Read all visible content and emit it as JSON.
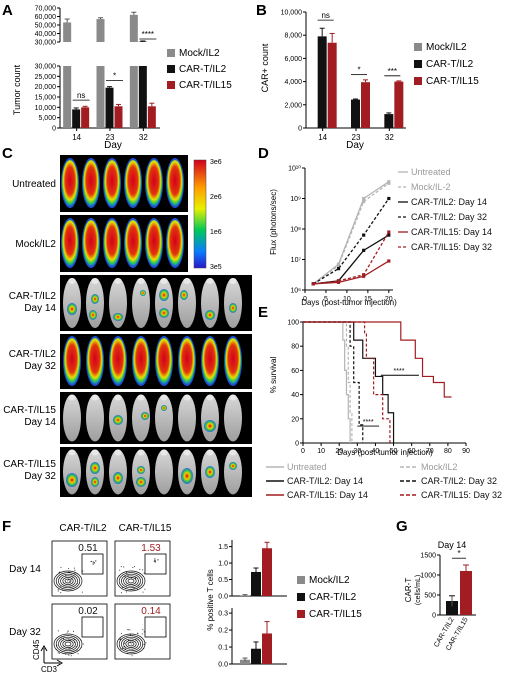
{
  "panels": {
    "A": {
      "letter": "A"
    },
    "B": {
      "letter": "B"
    },
    "C": {
      "letter": "C"
    },
    "D": {
      "letter": "D"
    },
    "E": {
      "letter": "E"
    },
    "F": {
      "letter": "F"
    },
    "G": {
      "letter": "G"
    }
  },
  "colors": {
    "mock": "#8a8a8a",
    "il2": "#111111",
    "il15": "#a11d22",
    "untreated": "#b5b5b5"
  },
  "chart_data": [
    {
      "id": "A",
      "type": "bar",
      "ylabel": "Tumor count",
      "xlabel": "Day",
      "categories": [
        "14",
        "23",
        "32"
      ],
      "yticks": [
        "0",
        "5,000",
        "10,000",
        "15,000",
        "20,000",
        "25,000",
        "30,000",
        "40,000",
        "50,000",
        "60,000",
        "70,000"
      ],
      "series": [
        {
          "name": "Mock/IL2",
          "values": [
            53000,
            57000,
            62000
          ],
          "err": [
            4000,
            1500,
            3000
          ]
        },
        {
          "name": "CAR-T/IL2",
          "values": [
            9000,
            19500,
            30500
          ],
          "err": [
            700,
            500,
            700
          ]
        },
        {
          "name": "CAR-T/IL15",
          "values": [
            10000,
            10500,
            10500
          ],
          "err": [
            500,
            900,
            1500
          ]
        }
      ],
      "sig": [
        "ns",
        "*",
        "****"
      ]
    },
    {
      "id": "B",
      "type": "bar",
      "ylabel": "CAR+ count",
      "xlabel": "Day",
      "categories": [
        "14",
        "23",
        "32"
      ],
      "yticks": [
        "0",
        "2,000",
        "4,000",
        "6,000",
        "8,000",
        "10,000"
      ],
      "ylim": [
        0,
        10000
      ],
      "series": [
        {
          "name": "Mock/IL2",
          "values": [
            0,
            0,
            0
          ],
          "err": [
            0,
            0,
            0
          ]
        },
        {
          "name": "CAR-T/IL2",
          "values": [
            7900,
            2450,
            1200
          ],
          "err": [
            700,
            50,
            100
          ]
        },
        {
          "name": "CAR-T/IL15",
          "values": [
            7350,
            3950,
            4000
          ],
          "err": [
            800,
            200,
            60
          ]
        }
      ],
      "sig": [
        "ns",
        "*",
        "***"
      ]
    },
    {
      "id": "D",
      "type": "line",
      "ylabel": "Flux (photons/sec)",
      "xlabel": "Days (post-tumor injection)",
      "xticks": [
        "0",
        "5",
        "10",
        "15",
        "20"
      ],
      "yticks": [
        "10⁶",
        "10⁷",
        "10⁸",
        "10⁹",
        "10¹⁰"
      ],
      "x": [
        2,
        8,
        14,
        20
      ],
      "series": [
        {
          "name": "Untreated",
          "values": [
            6.2,
            6.85,
            9.0,
            9.55
          ],
          "color": "untreated",
          "dash": false
        },
        {
          "name": "Mock/IL-2",
          "values": [
            6.2,
            6.8,
            8.9,
            9.5
          ],
          "color": "untreated",
          "dash": true
        },
        {
          "name": "CAR-T/IL2: Day 14",
          "values": [
            6.2,
            6.3,
            7.3,
            7.8
          ],
          "color": "il2",
          "dash": false
        },
        {
          "name": "CAR-T/IL2: Day 32",
          "values": [
            6.2,
            6.7,
            7.8,
            9.0
          ],
          "color": "il2",
          "dash": true
        },
        {
          "name": "CAR-T/IL15: Day 14",
          "values": [
            6.2,
            6.25,
            6.45,
            6.95
          ],
          "color": "il15",
          "dash": false
        },
        {
          "name": "CAR-T/IL15: Day 32",
          "values": [
            6.2,
            6.3,
            6.5,
            7.9
          ],
          "color": "il15",
          "dash": true
        }
      ]
    },
    {
      "id": "E",
      "type": "line",
      "ylabel": "% survival",
      "xlabel": "Days (post-tumor injection)",
      "xticks": [
        "0",
        "10",
        "20",
        "30",
        "40",
        "50",
        "60",
        "70",
        "80",
        "90"
      ],
      "yticks": [
        "0",
        "20",
        "40",
        "60",
        "80",
        "100"
      ],
      "sig": [
        "****",
        "****"
      ],
      "legend": [
        "Untreated",
        "Mock/IL2",
        "CAR-T/IL2: Day 14",
        "CAR-T/IL2: Day 32",
        "CAR-T/IL15: Day 14",
        "CAR-T/IL15: Day 32"
      ]
    },
    {
      "id": "F",
      "type": "bar",
      "ylabel": "% positive T cells",
      "yticks": [
        "0.0",
        "0.5",
        "1.0",
        "1.5"
      ],
      "top": {
        "values": [
          0.02,
          0.73,
          1.45
        ],
        "err": [
          0.02,
          0.12,
          0.18
        ]
      },
      "bottom_yticks": [
        "0.0",
        "0.1",
        "0.2",
        "0.3"
      ],
      "bottom": {
        "values": [
          0.025,
          0.09,
          0.18
        ],
        "err": [
          0.01,
          0.04,
          0.07
        ]
      },
      "legend": [
        "Mock/IL2",
        "CAR-T/IL2",
        "CAR-T/IL15"
      ]
    },
    {
      "id": "G",
      "type": "bar",
      "title": "Day 14",
      "ylabel": "CAR-T (cells/mL)",
      "categories": [
        "CAR-T/IL2",
        "CAR-T/IL15"
      ],
      "values": [
        350,
        1100
      ],
      "err": [
        130,
        150
      ],
      "yticks": [
        "0",
        "500",
        "1000",
        "1500"
      ],
      "sig": "*"
    }
  ],
  "imaging": {
    "scale_ticks": [
      "3e6",
      "2e6",
      "1e6",
      "3e5"
    ],
    "rows": [
      {
        "label_lines": [
          "Untreated"
        ]
      },
      {
        "label_lines": [
          "Mock/IL2"
        ]
      },
      {
        "label_lines": [
          "CAR-T/IL2",
          "Day 14"
        ]
      },
      {
        "label_lines": [
          "CAR-T/IL2",
          "Day 32"
        ]
      },
      {
        "label_lines": [
          "CAR-T/IL15",
          "Day 14"
        ]
      },
      {
        "label_lines": [
          "CAR-T/IL15",
          "Day 32"
        ]
      }
    ]
  },
  "flow": {
    "col_headers": [
      "CAR-T/IL2",
      "CAR-T/IL15"
    ],
    "row_labels": [
      "Day 14",
      "Day 32"
    ],
    "gate_values": [
      [
        "0.51",
        "1.53"
      ],
      [
        "0.02",
        "0.14"
      ]
    ],
    "axis_x": "CD3",
    "axis_y": "CD45"
  }
}
